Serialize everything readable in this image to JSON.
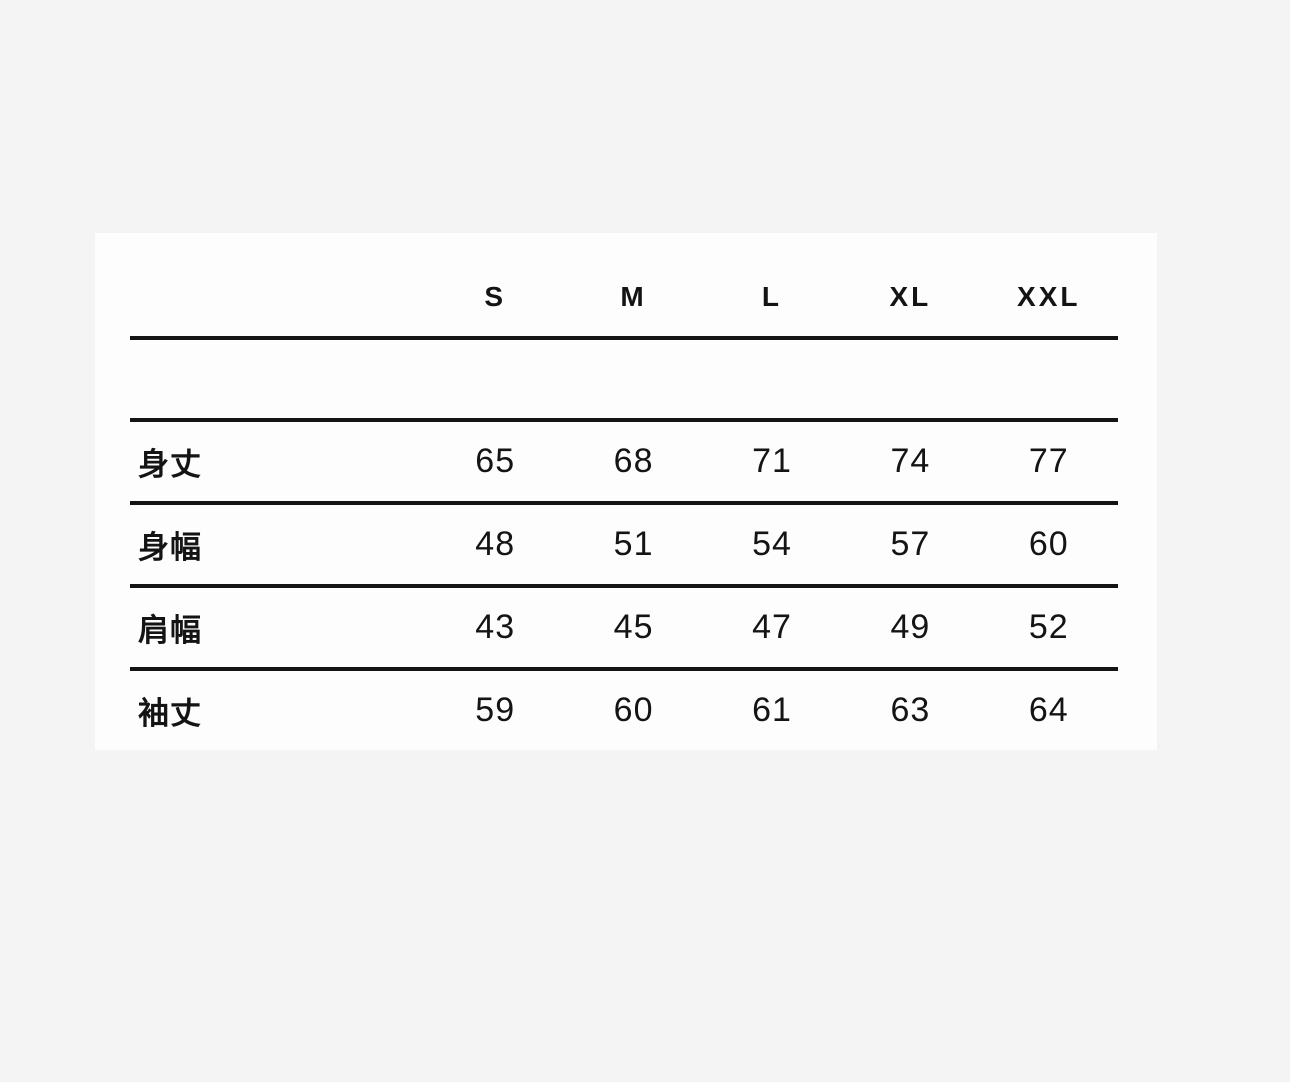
{
  "page": {
    "background_color": "#f4f4f5",
    "panel_background_color": "#fdfdfd",
    "rule_color": "#141414",
    "text_color": "#141414"
  },
  "chart_data": {
    "type": "table",
    "title": "",
    "description_semantic": "garment-size-spec-table",
    "unit_implied": "cm",
    "columns": [
      "S",
      "M",
      "L",
      "XL",
      "XXL"
    ],
    "rows": [
      {
        "label": "身丈",
        "values": [
          65,
          68,
          71,
          74,
          77
        ]
      },
      {
        "label": "身幅",
        "values": [
          48,
          51,
          54,
          57,
          60
        ]
      },
      {
        "label": "肩幅",
        "values": [
          43,
          45,
          47,
          49,
          52
        ]
      },
      {
        "label": "袖丈",
        "values": [
          59,
          60,
          61,
          63,
          64
        ]
      }
    ],
    "layout_hints": {
      "header_underline": true,
      "empty_row_below_header": true,
      "row_separators": true,
      "last_row_has_no_bottom_rule": true,
      "vertical_gridlines": false
    }
  }
}
